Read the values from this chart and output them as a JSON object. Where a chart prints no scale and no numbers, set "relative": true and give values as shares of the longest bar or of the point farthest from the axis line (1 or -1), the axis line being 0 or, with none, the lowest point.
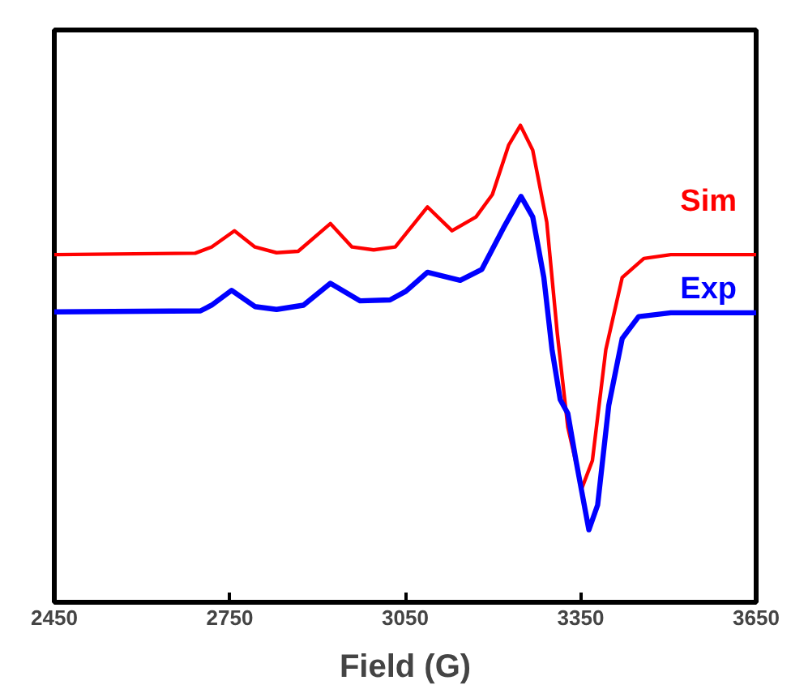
{
  "chart_data": {
    "type": "line",
    "relative": true,
    "xlabel": "Field (G)",
    "xlim": [
      2450,
      3650
    ],
    "xticks": [
      2450,
      2750,
      3050,
      3350,
      3650
    ],
    "grid": false,
    "legend": false,
    "marker": "none",
    "line_style": "solid",
    "series": [
      {
        "name": "Sim",
        "color": "#ff0000",
        "x": [
          2450,
          2691,
          2719,
          2758,
          2793,
          2830,
          2867,
          2922,
          2959,
          2996,
          3033,
          3088,
          3130,
          3171,
          3199,
          3227,
          3247,
          3268,
          3292,
          3310,
          3328,
          3352,
          3370,
          3393,
          3421,
          3458,
          3504,
          3650
        ],
        "values": [
          0.729,
          0.732,
          0.745,
          0.779,
          0.745,
          0.733,
          0.736,
          0.794,
          0.745,
          0.739,
          0.745,
          0.829,
          0.779,
          0.808,
          0.855,
          0.959,
          1.0,
          0.948,
          0.797,
          0.564,
          0.367,
          0.239,
          0.297,
          0.53,
          0.681,
          0.721,
          0.729,
          0.729
        ]
      },
      {
        "name": "Exp",
        "color": "#0000ff",
        "x": [
          2450,
          2700,
          2719,
          2753,
          2793,
          2830,
          2876,
          2922,
          2973,
          3024,
          3051,
          3088,
          3144,
          3181,
          3218,
          3248,
          3268,
          3287,
          3301,
          3315,
          3328,
          3342,
          3364,
          3379,
          3398,
          3421,
          3449,
          3504,
          3650
        ],
        "values": [
          0.609,
          0.611,
          0.623,
          0.654,
          0.62,
          0.614,
          0.623,
          0.669,
          0.632,
          0.634,
          0.652,
          0.692,
          0.675,
          0.698,
          0.785,
          0.851,
          0.808,
          0.681,
          0.53,
          0.425,
          0.396,
          0.297,
          0.152,
          0.204,
          0.413,
          0.553,
          0.599,
          0.607,
          0.607
        ]
      }
    ]
  }
}
